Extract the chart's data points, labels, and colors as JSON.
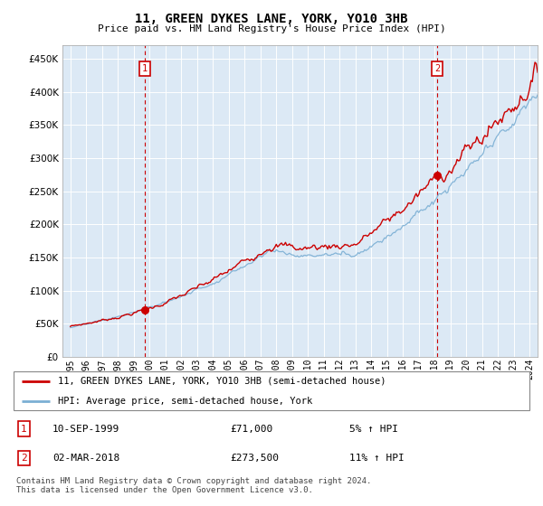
{
  "title": "11, GREEN DYKES LANE, YORK, YO10 3HB",
  "subtitle": "Price paid vs. HM Land Registry's House Price Index (HPI)",
  "legend_line1": "11, GREEN DYKES LANE, YORK, YO10 3HB (semi-detached house)",
  "legend_line2": "HPI: Average price, semi-detached house, York",
  "footer": "Contains HM Land Registry data © Crown copyright and database right 2024.\nThis data is licensed under the Open Government Licence v3.0.",
  "annotation1_date": "10-SEP-1999",
  "annotation1_price": "£71,000",
  "annotation1_hpi": "5% ↑ HPI",
  "annotation2_date": "02-MAR-2018",
  "annotation2_price": "£273,500",
  "annotation2_hpi": "11% ↑ HPI",
  "hpi_color": "#7bafd4",
  "price_color": "#cc0000",
  "plot_bg_color": "#dce9f5",
  "ylim": [
    0,
    470000
  ],
  "yticks": [
    0,
    50000,
    100000,
    150000,
    200000,
    250000,
    300000,
    350000,
    400000,
    450000
  ],
  "sale1_year": 1999.7,
  "sale1_price": 71000,
  "sale2_year": 2018.17,
  "sale2_price": 273500,
  "xstart": 1995,
  "xend": 2024.5
}
